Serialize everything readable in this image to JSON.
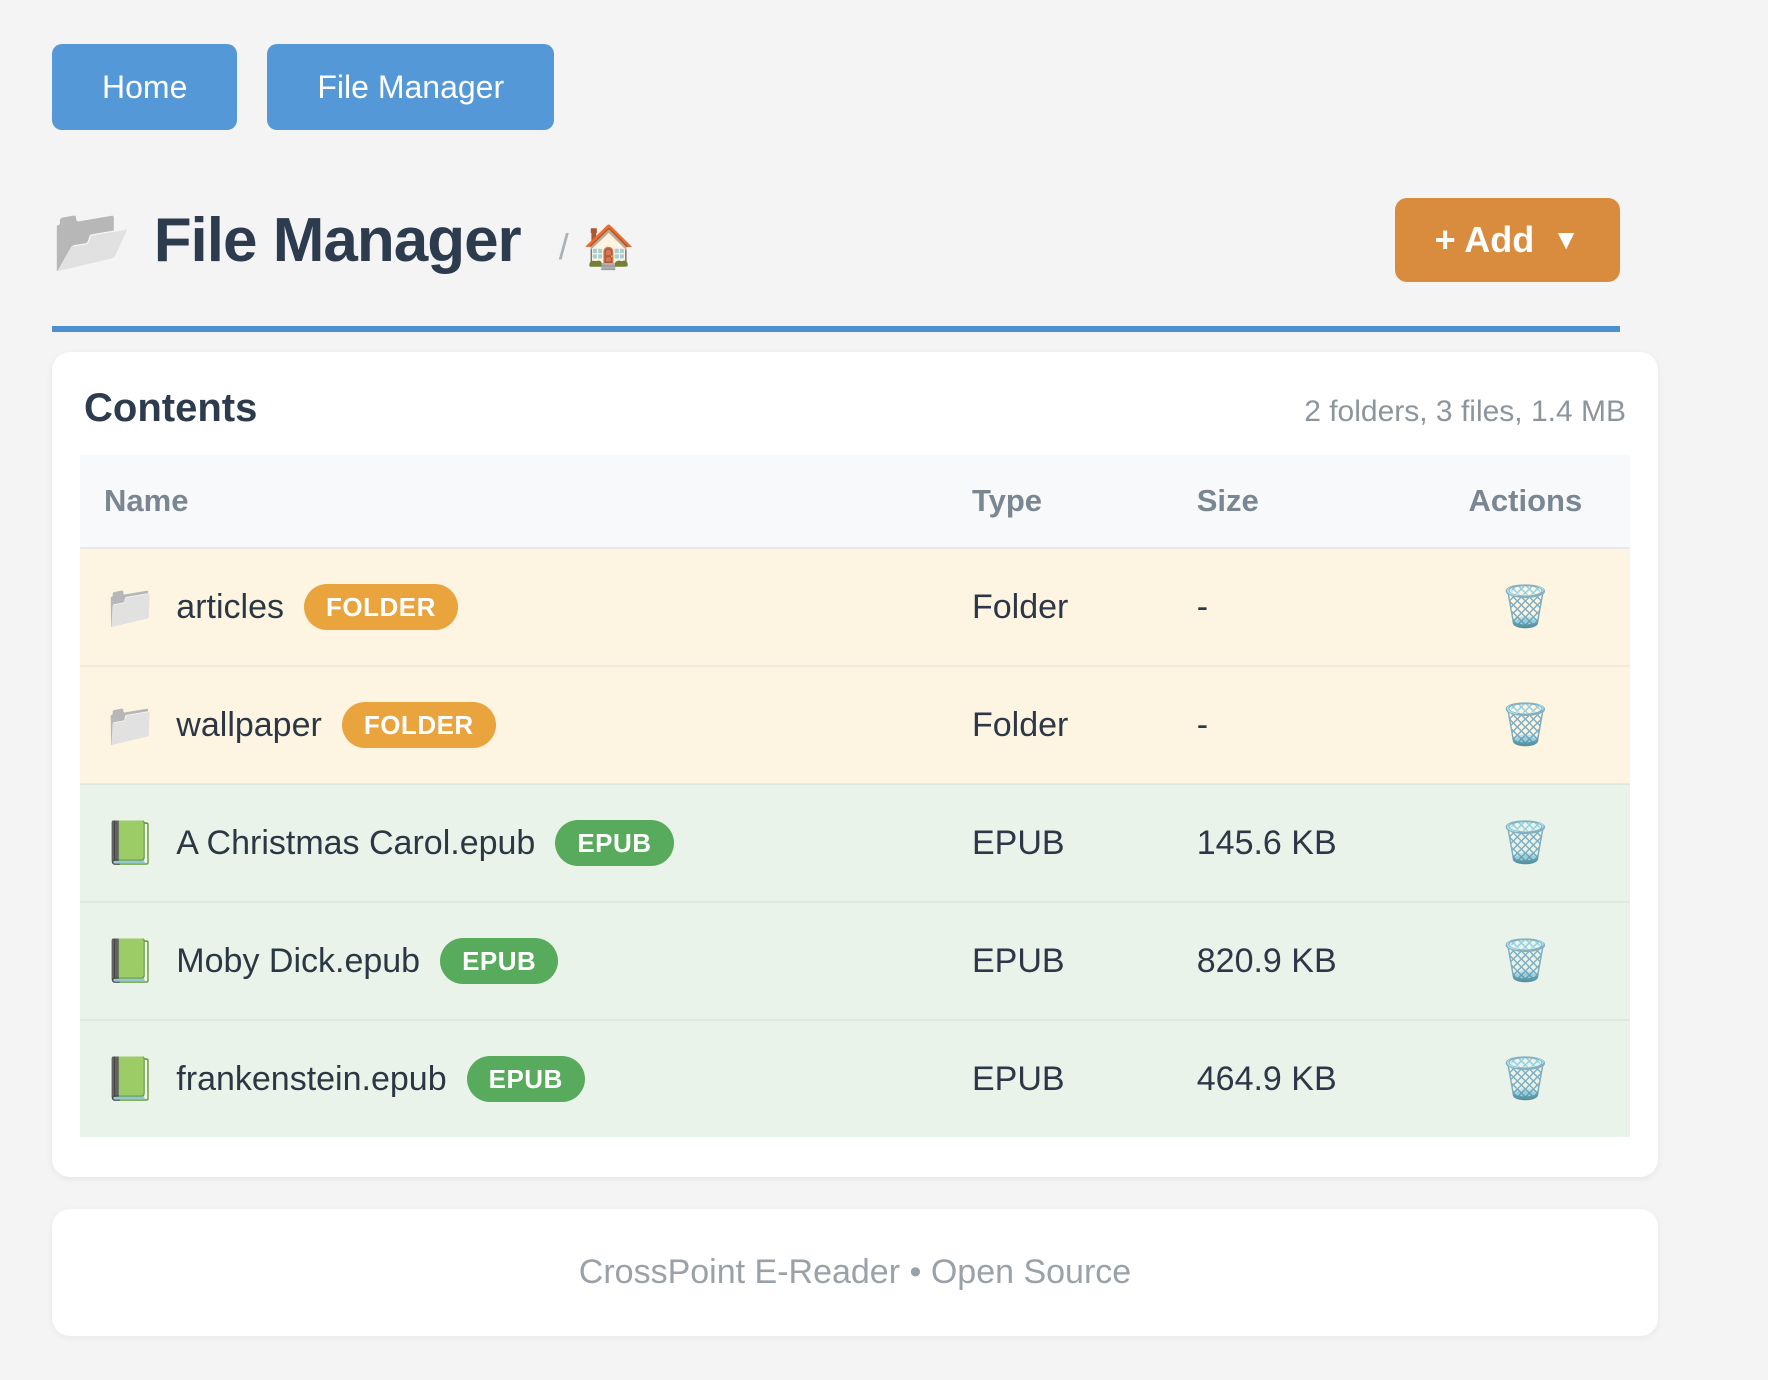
{
  "nav": {
    "buttons": [
      {
        "label": "Home"
      },
      {
        "label": "File Manager"
      }
    ]
  },
  "header": {
    "title_icon": "📂",
    "title": "File Manager",
    "breadcrumb_separator": "/",
    "breadcrumb_home_icon": "🏠",
    "add_button_label": "+ Add",
    "add_button_caret": "▼"
  },
  "contents": {
    "title": "Contents",
    "summary": "2 folders, 3 files, 1.4 MB",
    "columns": [
      "Name",
      "Type",
      "Size",
      "Actions"
    ],
    "action_icon": "🗑️",
    "rows": [
      {
        "icon": "📁",
        "name": "articles",
        "badge": "FOLDER",
        "badge_type": "folder",
        "type": "Folder",
        "size": "-"
      },
      {
        "icon": "📁",
        "name": "wallpaper",
        "badge": "FOLDER",
        "badge_type": "folder",
        "type": "Folder",
        "size": "-"
      },
      {
        "icon": "📗",
        "name": "A Christmas Carol.epub",
        "badge": "EPUB",
        "badge_type": "epub",
        "type": "EPUB",
        "size": "145.6 KB"
      },
      {
        "icon": "📗",
        "name": "Moby Dick.epub",
        "badge": "EPUB",
        "badge_type": "epub",
        "type": "EPUB",
        "size": "820.9 KB"
      },
      {
        "icon": "📗",
        "name": "frankenstein.epub",
        "badge": "EPUB",
        "badge_type": "epub",
        "type": "EPUB",
        "size": "464.9 KB"
      }
    ]
  },
  "footer": {
    "text": "CrossPoint E-Reader • Open Source"
  },
  "colors": {
    "accent-blue": "#5598d8",
    "hr-blue": "#4a90d2",
    "accent-orange": "#da8c3e",
    "badge-orange": "#e9a43d",
    "badge-green": "#58ab5c",
    "row-cream": "#fdf5e2",
    "row-green": "#e9f3e9"
  }
}
